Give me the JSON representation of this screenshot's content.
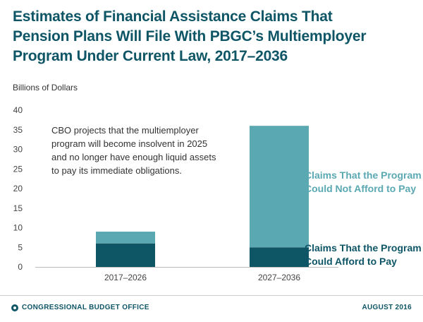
{
  "title_lines": [
    "Estimates of Financial Assistance Claims That",
    "Pension Plans Will File With PBGC’s Multiemployer",
    "Program Under Current Law, 2017–2036"
  ],
  "units_label": "Billions of Dollars",
  "annotation_lines": [
    "CBO projects that the multiemployer",
    "program will become insolvent in 2025",
    "and no longer have enough liquid assets",
    "to pay its immediate obligations."
  ],
  "footer": {
    "org": "CONGRESSIONAL BUDGET OFFICE",
    "date": "AUGUST 2016",
    "icon": "cbo-logo-icon"
  },
  "colors": {
    "title": "#0e5566",
    "afford": "#0e5566",
    "not_afford": "#5aa8b2",
    "axis": "#bbbbbb"
  },
  "chart_data": {
    "type": "bar",
    "stacked": true,
    "categories": [
      "2017–2026",
      "2027–2036"
    ],
    "series": [
      {
        "name": "Claims That the Program Could Afford to Pay",
        "values": [
          6,
          5
        ],
        "color": "#0e5566"
      },
      {
        "name": "Claims That the Program Could Not Afford to Pay",
        "values": [
          3,
          31
        ],
        "color": "#5aa8b2"
      }
    ],
    "legend_lines": [
      {
        "series": 1,
        "lines": [
          "Claims That the Program",
          "Could Not Afford to Pay"
        ]
      },
      {
        "series": 0,
        "lines": [
          "Claims That the Program",
          "Could Afford to Pay"
        ]
      }
    ],
    "ylabel": "Billions of Dollars",
    "ylim": [
      0,
      40
    ],
    "yticks": [
      0,
      5,
      10,
      15,
      20,
      25,
      30,
      35,
      40
    ],
    "grid": false,
    "legend_position": "right, labels beside bars"
  }
}
